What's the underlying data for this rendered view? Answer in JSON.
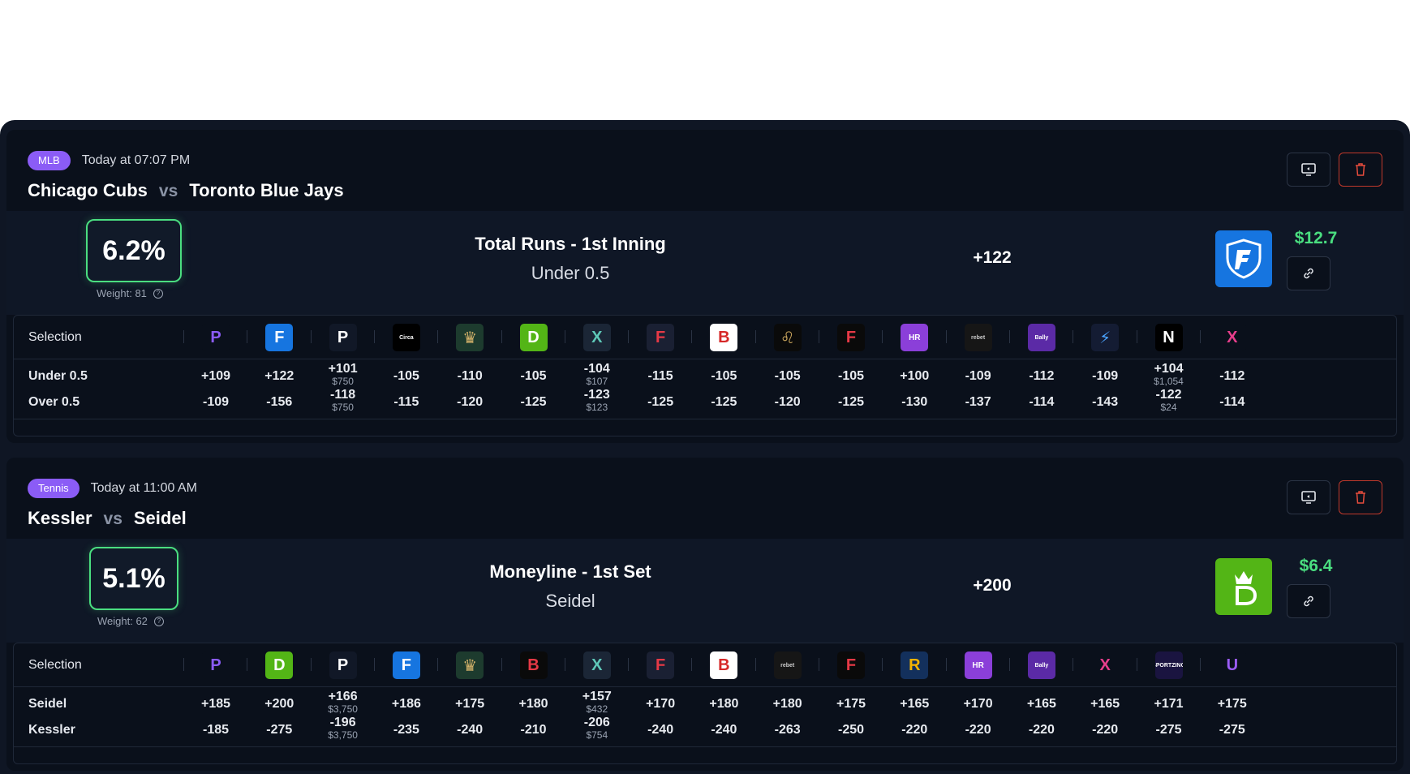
{
  "events": [
    {
      "sport": "MLB",
      "time": "Today at 07:07 PM",
      "team1": "Chicago Cubs",
      "vs": "vs",
      "team2": "Toronto Blue Jays",
      "ev": "6.2%",
      "weight": "Weight: 81",
      "market_title": "Total Runs - 1st Inning",
      "market_selection": "Under 0.5",
      "best_odds": "+122",
      "best_book_icon": "fanduel-logo-icon",
      "profit": "$12.7",
      "selection_header": "Selection",
      "books": [
        "prizepicks",
        "fanduel",
        "pinnacle",
        "circa",
        "caesars-crown",
        "draftkings",
        "betrivers-x",
        "fliff",
        "betmgm-b",
        "betmgm-lion",
        "fanatics",
        "hardrock",
        "rebet",
        "bally",
        "espnbet",
        "novig",
        "prophetx"
      ],
      "rows": [
        {
          "label": "Under 0.5",
          "odds": [
            {
              "v": "+109"
            },
            {
              "v": "+122"
            },
            {
              "v": "+101",
              "s": "$750"
            },
            {
              "v": "-105"
            },
            {
              "v": "-110"
            },
            {
              "v": "-105"
            },
            {
              "v": "-104",
              "s": "$107"
            },
            {
              "v": "-115"
            },
            {
              "v": "-105"
            },
            {
              "v": "-105"
            },
            {
              "v": "-105"
            },
            {
              "v": "+100"
            },
            {
              "v": "-109"
            },
            {
              "v": "-112"
            },
            {
              "v": "-109"
            },
            {
              "v": "+104",
              "s": "$1,054"
            },
            {
              "v": "-112"
            }
          ]
        },
        {
          "label": "Over 0.5",
          "odds": [
            {
              "v": "-109"
            },
            {
              "v": "-156"
            },
            {
              "v": "-118",
              "s": "$750"
            },
            {
              "v": "-115"
            },
            {
              "v": "-120"
            },
            {
              "v": "-125"
            },
            {
              "v": "-123",
              "s": "$123"
            },
            {
              "v": "-125"
            },
            {
              "v": "-125"
            },
            {
              "v": "-120"
            },
            {
              "v": "-125"
            },
            {
              "v": "-130"
            },
            {
              "v": "-137"
            },
            {
              "v": "-114"
            },
            {
              "v": "-143"
            },
            {
              "v": "-122",
              "s": "$24"
            },
            {
              "v": "-114"
            }
          ]
        }
      ]
    },
    {
      "sport": "Tennis",
      "time": "Today at 11:00 AM",
      "team1": "Kessler",
      "vs": "vs",
      "team2": "Seidel",
      "ev": "5.1%",
      "weight": "Weight: 62",
      "market_title": "Moneyline - 1st Set",
      "market_selection": "Seidel",
      "best_odds": "+200",
      "best_book_icon": "draftkings-logo-icon",
      "profit": "$6.4",
      "selection_header": "Selection",
      "books": [
        "prizepicks",
        "draftkings",
        "pinnacle",
        "fanduel",
        "caesars-crown",
        "betonline",
        "betrivers-x",
        "fliff",
        "betmgm-b",
        "rebet",
        "fanatics",
        "betrivers",
        "hardrock",
        "bally",
        "prophetx",
        "sportzino",
        "underdog"
      ],
      "rows": [
        {
          "label": "Seidel",
          "odds": [
            {
              "v": "+185"
            },
            {
              "v": "+200"
            },
            {
              "v": "+166",
              "s": "$3,750"
            },
            {
              "v": "+186"
            },
            {
              "v": "+175"
            },
            {
              "v": "+180"
            },
            {
              "v": "+157",
              "s": "$432"
            },
            {
              "v": "+170"
            },
            {
              "v": "+180"
            },
            {
              "v": "+180"
            },
            {
              "v": "+175"
            },
            {
              "v": "+165"
            },
            {
              "v": "+170"
            },
            {
              "v": "+165"
            },
            {
              "v": "+165"
            },
            {
              "v": "+171"
            },
            {
              "v": "+175"
            }
          ]
        },
        {
          "label": "Kessler",
          "odds": [
            {
              "v": "-185"
            },
            {
              "v": "-275"
            },
            {
              "v": "-196",
              "s": "$3,750"
            },
            {
              "v": "-235"
            },
            {
              "v": "-240"
            },
            {
              "v": "-210"
            },
            {
              "v": "-206",
              "s": "$754"
            },
            {
              "v": "-240"
            },
            {
              "v": "-240"
            },
            {
              "v": "-263"
            },
            {
              "v": "-250"
            },
            {
              "v": "-220"
            },
            {
              "v": "-220"
            },
            {
              "v": "-220"
            },
            {
              "v": "-220"
            },
            {
              "v": "-275"
            },
            {
              "v": "-275"
            }
          ]
        }
      ]
    }
  ],
  "book_styles": {
    "prizepicks": {
      "bg": "#0a101b",
      "fg": "#8b5cf6",
      "text": "P"
    },
    "fanduel": {
      "bg": "#1675e0",
      "fg": "#ffffff",
      "text": "F"
    },
    "pinnacle": {
      "bg": "#111827",
      "fg": "#ffffff",
      "text": "P"
    },
    "circa": {
      "bg": "#000000",
      "fg": "#ffffff",
      "text": "Circa"
    },
    "caesars-crown": {
      "bg": "#1d3b2e",
      "fg": "#d4b26a",
      "text": "♛"
    },
    "draftkings": {
      "bg": "#53b516",
      "fg": "#ffffff",
      "text": "D"
    },
    "betrivers-x": {
      "bg": "#1b2636",
      "fg": "#5ec8b8",
      "text": "X"
    },
    "fliff": {
      "bg": "#1a2033",
      "fg": "#e63946",
      "text": "F"
    },
    "betmgm-b": {
      "bg": "#ffffff",
      "fg": "#d62828",
      "text": "B"
    },
    "betmgm-lion": {
      "bg": "#0a0a0a",
      "fg": "#c9a45c",
      "text": "♌"
    },
    "fanatics": {
      "bg": "#0a0a0a",
      "fg": "#e63946",
      "text": "F"
    },
    "hardrock": {
      "bg": "#8b3fd9",
      "fg": "#ffffff",
      "text": "HR"
    },
    "rebet": {
      "bg": "#161616",
      "fg": "#cccccc",
      "text": "rebet"
    },
    "bally": {
      "bg": "#5b2aa6",
      "fg": "#ffffff",
      "text": "Bally"
    },
    "espnbet": {
      "bg": "#141c33",
      "fg": "#4aa3ff",
      "text": "⚡"
    },
    "novig": {
      "bg": "#000000",
      "fg": "#ffffff",
      "text": "N"
    },
    "prophetx": {
      "bg": "#0a101b",
      "fg": "#e83e8c",
      "text": "X"
    },
    "betonline": {
      "bg": "#0a0a0a",
      "fg": "#e63946",
      "text": "B"
    },
    "betrivers": {
      "bg": "#13305c",
      "fg": "#f5b400",
      "text": "R"
    },
    "sportzino": {
      "bg": "#1a1440",
      "fg": "#ffffff",
      "text": "SPORTZINO"
    },
    "underdog": {
      "bg": "#0a101b",
      "fg": "#9b5cf6",
      "text": "U"
    }
  }
}
